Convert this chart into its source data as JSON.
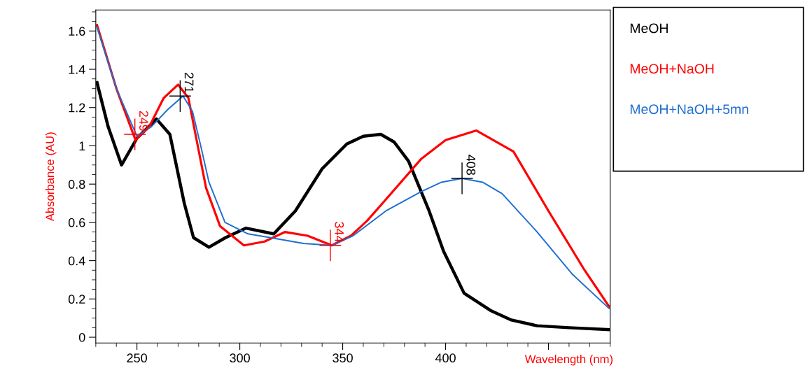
{
  "chart_data": {
    "type": "line",
    "xlabel": "Wavelength (nm)",
    "ylabel": "Absorbance (AU)",
    "xlim": [
      230,
      480
    ],
    "ylim": [
      -0.03,
      1.71
    ],
    "xticks": [
      250,
      300,
      350,
      400,
      {
        "value": 450,
        "label": null
      }
    ],
    "yticks": [
      0,
      0.2,
      0.4,
      0.6,
      0.8,
      1,
      1.2,
      1.4,
      1.6
    ],
    "grid": false,
    "legend": false,
    "marker": "none",
    "line_style": "solid",
    "series": [
      {
        "name": "MeOH",
        "color": "#000000",
        "x": [
          230.6,
          236,
          242.5,
          250,
          259.5,
          266,
          273,
          277.5,
          285,
          293,
          303,
          316.5,
          327,
          340,
          352,
          360,
          368.5,
          375,
          382,
          392,
          399,
          409,
          421.8,
          432,
          444.5,
          460,
          479.5
        ],
        "values": [
          1.33,
          1.1,
          0.9,
          1.04,
          1.14,
          1.06,
          0.7,
          0.52,
          0.47,
          0.52,
          0.57,
          0.54,
          0.66,
          0.88,
          1.01,
          1.05,
          1.06,
          1.02,
          0.92,
          0.66,
          0.45,
          0.23,
          0.14,
          0.09,
          0.06,
          0.05,
          0.04
        ]
      },
      {
        "name": "MeOH+NaOH",
        "color": "#ff0000",
        "x": [
          230.6,
          240,
          249.3,
          256,
          263,
          270,
          275,
          279,
          283.6,
          290.4,
          302,
          312,
          322,
          333,
          344.7,
          354,
          362,
          371,
          388,
          400,
          415,
          433,
          450,
          467,
          479.5
        ],
        "values": [
          1.63,
          1.3,
          1.03,
          1.1,
          1.25,
          1.32,
          1.25,
          1.03,
          0.78,
          0.58,
          0.48,
          0.5,
          0.55,
          0.53,
          0.48,
          0.53,
          0.61,
          0.72,
          0.93,
          1.03,
          1.08,
          0.97,
          0.66,
          0.36,
          0.16
        ]
      },
      {
        "name": "MeOH+NaOH+5mn",
        "color": "#1f6fd0",
        "x": [
          230.6,
          240,
          250,
          257,
          265,
          272.4,
          277,
          281,
          285,
          292.8,
          304,
          315,
          331,
          344.7,
          355,
          371,
          388,
          398,
          408,
          418,
          427.5,
          444.5,
          461.5,
          479.5
        ],
        "values": [
          1.62,
          1.3,
          1.05,
          1.1,
          1.19,
          1.26,
          1.18,
          1.0,
          0.81,
          0.6,
          0.54,
          0.52,
          0.49,
          0.48,
          0.53,
          0.66,
          0.76,
          0.81,
          0.83,
          0.81,
          0.75,
          0.55,
          0.33,
          0.15
        ]
      }
    ],
    "annotations": [
      {
        "text": "249",
        "x": 249,
        "y": 1.06
      },
      {
        "text": "271",
        "x": 271,
        "y": 1.26
      },
      {
        "text": "344",
        "x": 344,
        "y": 0.48
      },
      {
        "text": "408",
        "x": 408,
        "y": 0.83
      }
    ]
  }
}
